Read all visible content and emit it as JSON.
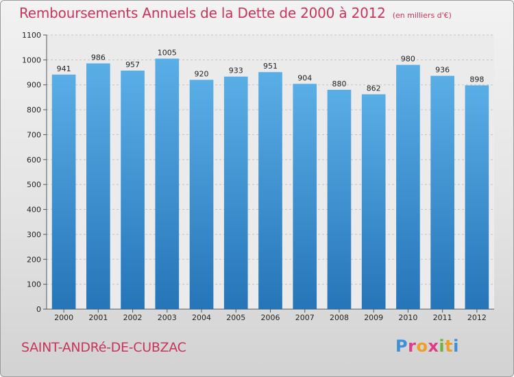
{
  "title": "Remboursements Annuels de la Dette de 2000 à 2012",
  "subtitle": "(en milliers d'€)",
  "city": "SAINT-ANDRé-DE-CUBZAC",
  "logo": {
    "text": "Proxiti",
    "letter_colors": [
      "#3d8fd6",
      "#e03b87",
      "#f0a020",
      "#e03b87",
      "#6db33f",
      "#f0a020",
      "#3d8fd6"
    ]
  },
  "colors": {
    "accent": "#c8345a",
    "bar_top": "#5aaee6",
    "bar_bottom": "#2575b8"
  },
  "chart_data": {
    "type": "bar",
    "categories": [
      "2000",
      "2001",
      "2002",
      "2003",
      "2004",
      "2005",
      "2006",
      "2007",
      "2008",
      "2009",
      "2010",
      "2011",
      "2012"
    ],
    "values": [
      941,
      986,
      957,
      1005,
      920,
      933,
      951,
      904,
      880,
      862,
      980,
      936,
      898
    ],
    "title": "Remboursements Annuels de la Dette de 2000 à 2012",
    "xlabel": "",
    "ylabel": "",
    "ylim": [
      0,
      1100
    ],
    "yticks": [
      0,
      100,
      200,
      300,
      400,
      500,
      600,
      700,
      800,
      900,
      1000,
      1100
    ],
    "grid": true,
    "legend": "none"
  }
}
